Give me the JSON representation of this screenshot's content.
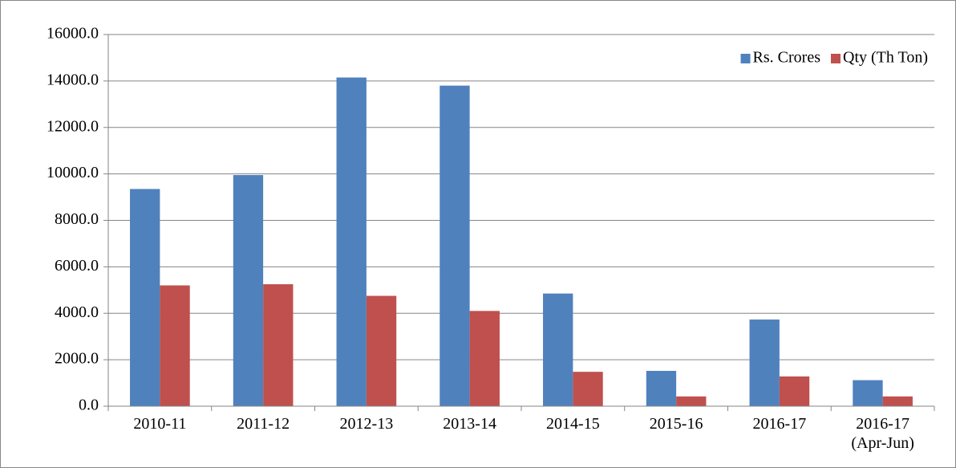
{
  "chart_data": {
    "type": "bar",
    "categories": [
      "2010-11",
      "2011-12",
      "2012-13",
      "2013-14",
      "2014-15",
      "2015-16",
      "2016-17",
      "2016-17\n(Apr-Jun)"
    ],
    "series": [
      {
        "name": "Rs. Crores",
        "color": "#4f81bd",
        "values": [
          9350,
          9950,
          14150,
          13800,
          4850,
          1520,
          3730,
          1120
        ]
      },
      {
        "name": "Qty (Th Ton)",
        "color": "#c0504d",
        "values": [
          5200,
          5250,
          4750,
          4100,
          1480,
          420,
          1280,
          420
        ]
      }
    ],
    "ylim": [
      0,
      16000
    ],
    "yticks": [
      {
        "value": 0,
        "label": "0.0"
      },
      {
        "value": 2000,
        "label": "2000.0"
      },
      {
        "value": 4000,
        "label": "4000.0"
      },
      {
        "value": 6000,
        "label": "6000.0"
      },
      {
        "value": 8000,
        "label": "8000.0"
      },
      {
        "value": 10000,
        "label": "10000.0"
      },
      {
        "value": 12000,
        "label": "12000.0"
      },
      {
        "value": 14000,
        "label": "14000.0"
      },
      {
        "value": 16000,
        "label": "16000.0"
      }
    ],
    "grid": true,
    "legend": "top-right"
  }
}
